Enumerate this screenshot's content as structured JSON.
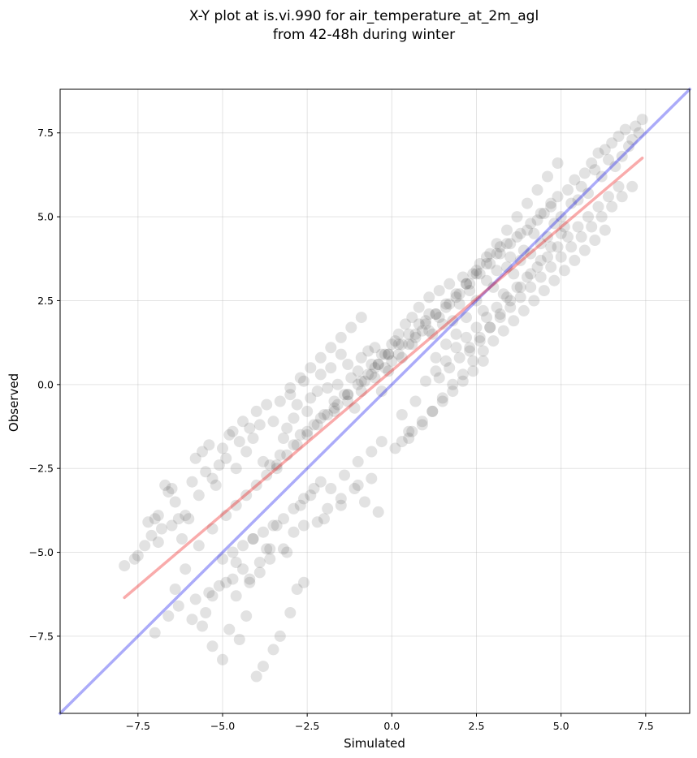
{
  "chart_data": {
    "type": "scatter",
    "title_line1": "X-Y plot at is.vi.990 for air_temperature_at_2m_agl",
    "title_line2": "from 42-48h during winter",
    "xlabel": "Simulated",
    "ylabel": "Observed",
    "xlim": [
      -9.8,
      8.8
    ],
    "ylim": [
      -9.8,
      8.8
    ],
    "x_ticks": [
      -7.5,
      -5.0,
      -2.5,
      0.0,
      2.5,
      5.0,
      7.5
    ],
    "x_tick_labels": [
      "−7.5",
      "−5.0",
      "−2.5",
      "0.0",
      "2.5",
      "5.0",
      "7.5"
    ],
    "y_ticks": [
      -7.5,
      -5.0,
      -2.5,
      0.0,
      2.5,
      5.0,
      7.5
    ],
    "y_tick_labels": [
      "−7.5",
      "−5.0",
      "−2.5",
      "0.0",
      "2.5",
      "5.0",
      "7.5"
    ],
    "grid": true,
    "colors": {
      "points": "#333333",
      "identity_line": "#0000ee",
      "regression_line": "#ee0000"
    },
    "identity_line": {
      "x": [
        -9.8,
        8.8
      ],
      "y": [
        -9.8,
        8.8
      ]
    },
    "regression_line": {
      "x": [
        -7.9,
        7.4
      ],
      "y": [
        -6.35,
        6.75
      ]
    },
    "points": {
      "x": [
        -7.9,
        -7.6,
        -7.5,
        -7.3,
        -7.2,
        -7.1,
        -7.0,
        -6.9,
        -6.9,
        -6.8,
        -6.7,
        -6.6,
        -6.5,
        -6.5,
        -6.4,
        -6.3,
        -6.2,
        -6.1,
        -6.0,
        -5.9,
        -5.8,
        -5.7,
        -5.6,
        -5.5,
        -5.4,
        -5.3,
        -5.2,
        -5.1,
        -5.0,
        -4.9,
        -4.8,
        -4.7,
        -4.6,
        -4.5,
        -4.4,
        -4.3,
        -4.2,
        -4.1,
        -4.0,
        -3.9,
        -3.8,
        -3.7,
        -3.6,
        -3.5,
        -3.4,
        -3.3,
        -3.2,
        -3.1,
        -3.0,
        -2.9,
        -2.8,
        -2.7,
        -2.6,
        -2.5,
        -2.4,
        -2.3,
        -2.2,
        -2.1,
        -2.0,
        -1.9,
        -1.8,
        -1.7,
        -1.6,
        -1.5,
        -1.4,
        -1.3,
        -1.2,
        -1.1,
        -1.0,
        -0.9,
        -0.8,
        -0.7,
        -0.6,
        -0.5,
        -0.4,
        -0.3,
        -0.2,
        -0.1,
        0.0,
        0.1,
        0.2,
        0.3,
        0.4,
        0.5,
        0.6,
        0.7,
        0.8,
        0.9,
        1.0,
        1.1,
        1.2,
        1.3,
        1.4,
        1.5,
        1.6,
        1.7,
        1.8,
        1.9,
        2.0,
        2.1,
        2.2,
        2.3,
        2.4,
        2.5,
        2.6,
        2.7,
        2.8,
        2.9,
        3.0,
        3.1,
        3.2,
        3.3,
        3.4,
        3.5,
        3.6,
        3.7,
        3.8,
        3.9,
        4.0,
        4.1,
        4.2,
        4.3,
        4.4,
        4.5,
        4.6,
        4.7,
        4.8,
        4.9,
        5.0,
        5.1,
        5.2,
        5.3,
        5.4,
        5.5,
        5.6,
        5.7,
        5.8,
        5.9,
        6.0,
        6.1,
        6.2,
        6.3,
        6.4,
        6.5,
        6.6,
        6.7,
        6.8,
        6.9,
        7.0,
        7.1,
        7.2,
        7.3,
        7.4,
        -7.0,
        -6.6,
        -6.3,
        -5.8,
        -5.4,
        -5.1,
        -4.7,
        -4.4,
        -4.2,
        -3.9,
        -3.6,
        -3.2,
        -2.9,
        -2.6,
        -2.2,
        -1.9,
        -1.5,
        -1.1,
        -0.8,
        -0.4,
        -5.9,
        -5.6,
        -5.3,
        -5.0,
        -4.8,
        -4.5,
        -4.3,
        -4.0,
        -3.8,
        -3.5,
        -3.3,
        -3.0,
        -2.8,
        -2.6,
        -2.0,
        -1.5,
        -1.0,
        -0.6,
        0.1,
        0.5,
        -6.4,
        -6.1,
        -5.7,
        -5.3,
        -4.9,
        -4.6,
        -4.1,
        -3.7,
        -3.4,
        -3.1,
        -2.7,
        -2.4,
        -2.1,
        -1.8,
        -1.4,
        -1.0,
        -0.6,
        -0.3,
        0.3,
        0.7,
        1.0,
        1.3,
        1.6,
        1.9,
        2.2,
        2.5,
        2.8,
        3.1,
        3.4,
        3.7,
        4.0,
        4.3,
        4.6,
        4.9,
        5.2,
        5.5,
        5.8,
        6.1,
        6.4,
        6.7,
        0.5,
        0.9,
        1.2,
        1.5,
        1.8,
        2.1,
        2.4,
        2.7,
        3.0,
        3.3,
        3.6,
        3.9,
        4.2,
        4.5,
        4.8,
        5.1,
        5.4,
        5.7,
        6.0,
        6.3,
        -1.7,
        -1.3,
        -0.9,
        -0.5,
        -0.2,
        0.2,
        0.6,
        1.1,
        1.4,
        1.7,
        2.0,
        2.3,
        2.6,
        2.9,
        3.2,
        3.5,
        3.8,
        4.1,
        4.4,
        4.7,
        -3.3,
        -2.9,
        -2.5,
        -2.1,
        -1.7,
        -1.3,
        -0.9,
        -0.5,
        -0.1,
        0.3,
        0.7,
        1.0,
        1.3,
        1.6,
        1.9,
        2.2,
        2.5,
        2.8,
        3.1,
        3.4,
        -4.6,
        -4.3,
        -4.0,
        -3.7,
        -3.4,
        -3.1,
        -2.8,
        -2.5,
        -2.2,
        -1.9,
        -1.6,
        -1.3,
        -1.0,
        -0.7,
        -0.4,
        -0.1,
        0.2,
        0.5,
        0.8,
        1.1,
        1.4,
        1.7,
        2.0,
        2.3,
        2.6,
        2.9,
        3.2,
        3.5,
        3.8,
        4.1,
        4.4,
        4.7,
        5.0,
        5.3,
        5.6,
        5.9,
        6.2,
        6.5,
        6.8,
        7.1,
        -5.0,
        -4.7,
        -4.4,
        -4.1,
        -3.8,
        -3.5,
        -3.2,
        -2.9,
        -2.6,
        -2.3,
        -5.3,
        -5.5,
        -4.9,
        -4.6,
        -4.2,
        -3.9,
        -3.6,
        1.3,
        1.6,
        1.9,
        2.2,
        2.5,
        2.8,
        3.1,
        3.4,
        3.7,
        4.0,
        4.3,
        4.6,
        4.9,
        2.3,
        2.6,
        2.9,
        3.2,
        3.5,
        3.8,
        4.1,
        4.4,
        4.7,
        5.0,
        -3.0,
        -2.7,
        -2.4,
        -2.1,
        -1.8,
        -1.5,
        -1.2,
        -0.9,
        -0.6,
        -0.3,
        0.0,
        0.3,
        0.6,
        0.9,
        1.2,
        1.5,
        1.8,
        2.1,
        2.4,
        2.7
      ],
      "y": [
        -5.4,
        -5.2,
        -5.1,
        -4.8,
        -4.1,
        -4.5,
        -4.0,
        -4.7,
        -3.9,
        -4.3,
        -3.0,
        -3.2,
        -3.1,
        -4.2,
        -3.5,
        -4.0,
        -4.6,
        -3.9,
        -4.0,
        -2.9,
        -2.2,
        -3.3,
        -2.0,
        -2.6,
        -1.8,
        -2.8,
        -3.0,
        -2.4,
        -1.9,
        -2.2,
        -1.5,
        -1.4,
        -2.5,
        -1.7,
        -1.1,
        -2.0,
        -1.3,
        -1.6,
        -0.8,
        -1.2,
        -2.3,
        -0.6,
        -2.4,
        -1.1,
        -2.5,
        -0.5,
        -1.6,
        -1.3,
        -0.3,
        -1.0,
        -0.6,
        -1.5,
        0.1,
        -0.8,
        -0.4,
        -1.2,
        -0.2,
        0.3,
        -0.9,
        -0.1,
        0.5,
        -0.5,
        0.0,
        0.9,
        -0.3,
        0.6,
        0.2,
        -0.7,
        0.4,
        0.8,
        0.1,
        1.0,
        0.3,
        1.1,
        0.6,
        -0.2,
        0.9,
        0.4,
        0.7,
        1.3,
        1.5,
        0.8,
        1.8,
        1.2,
        2.0,
        1.4,
        2.3,
        1.6,
        1.9,
        2.6,
        1.5,
        2.1,
        2.8,
        1.8,
        2.3,
        3.0,
        1.9,
        2.6,
        2.4,
        3.2,
        2.0,
        2.8,
        3.3,
        2.5,
        3.6,
        2.2,
        3.1,
        3.9,
        2.9,
        3.4,
        4.1,
        2.7,
        3.5,
        3.8,
        3.3,
        4.4,
        3.7,
        4.0,
        4.6,
        3.9,
        4.5,
        4.9,
        4.2,
        5.1,
        4.4,
        5.3,
        4.8,
        5.6,
        5.0,
        4.7,
        5.8,
        5.4,
        6.1,
        5.5,
        5.9,
        6.3,
        5.7,
        6.6,
        6.4,
        6.9,
        6.2,
        7.0,
        6.7,
        7.2,
        6.5,
        7.4,
        6.8,
        7.6,
        7.1,
        7.3,
        7.7,
        7.5,
        7.9,
        -7.4,
        -6.9,
        -6.6,
        -6.4,
        -6.2,
        -6.0,
        -5.8,
        -5.5,
        -5.9,
        -5.6,
        -5.2,
        -4.9,
        -4.4,
        -4.2,
        -4.1,
        -3.7,
        -3.4,
        -3.1,
        -3.5,
        -3.8,
        -7.0,
        -7.2,
        -7.8,
        -8.2,
        -7.3,
        -7.6,
        -6.9,
        -8.7,
        -8.4,
        -7.9,
        -7.5,
        -6.8,
        -6.1,
        -5.9,
        -4.0,
        -3.6,
        -3.0,
        -2.8,
        -1.9,
        -1.4,
        -6.1,
        -5.5,
        -4.8,
        -4.3,
        -3.9,
        -5.3,
        -4.6,
        -4.9,
        -4.2,
        -5.0,
        -3.6,
        -3.3,
        -2.9,
        -3.1,
        -2.7,
        -2.3,
        -2.0,
        -1.7,
        -0.9,
        -0.5,
        0.1,
        0.4,
        0.7,
        1.1,
        1.4,
        1.7,
        2.0,
        2.3,
        2.6,
        2.9,
        3.2,
        3.5,
        3.8,
        4.1,
        4.4,
        4.7,
        5.0,
        5.3,
        5.6,
        5.9,
        -1.6,
        -1.2,
        -0.8,
        -0.4,
        0.0,
        0.3,
        0.7,
        1.0,
        1.3,
        1.6,
        1.9,
        2.2,
        2.5,
        2.8,
        3.1,
        3.4,
        3.7,
        4.0,
        4.3,
        4.6,
        -0.8,
        -0.5,
        -0.2,
        0.2,
        0.5,
        0.9,
        1.2,
        1.6,
        2.0,
        2.4,
        2.7,
        3.0,
        3.3,
        3.6,
        3.9,
        4.2,
        4.5,
        4.8,
        5.1,
        5.4,
        -2.1,
        -1.8,
        -1.4,
        -1.0,
        -0.7,
        -0.3,
        0.1,
        0.5,
        0.9,
        1.2,
        1.5,
        1.8,
        2.1,
        2.4,
        2.7,
        3.0,
        3.3,
        3.6,
        3.9,
        4.2,
        -3.6,
        -3.3,
        -3.0,
        -2.7,
        -2.4,
        -2.1,
        -1.8,
        -1.5,
        -1.2,
        -0.9,
        -0.6,
        -0.3,
        0.0,
        0.3,
        0.6,
        0.9,
        1.2,
        1.5,
        1.8,
        2.1,
        0.2,
        0.5,
        0.8,
        1.1,
        1.4,
        1.7,
        2.0,
        2.3,
        2.6,
        2.9,
        3.2,
        3.5,
        3.8,
        4.1,
        4.4,
        4.7,
        5.0,
        5.3,
        5.6,
        5.9,
        -5.2,
        -5.0,
        -4.8,
        -4.6,
        -4.4,
        -4.2,
        -4.0,
        -3.7,
        -3.4,
        -3.1,
        -6.3,
        -6.8,
        -5.9,
        -6.3,
        -5.8,
        -5.3,
        -4.9,
        0.8,
        1.2,
        1.5,
        3.0,
        3.4,
        3.8,
        4.2,
        4.6,
        5.0,
        5.4,
        5.8,
        6.2,
        6.6,
        1.0,
        1.3,
        1.7,
        2.1,
        2.5,
        2.9,
        3.3,
        3.7,
        4.1,
        4.5,
        -0.1,
        0.2,
        0.5,
        0.8,
        1.1,
        1.4,
        1.7,
        2.0,
        0.6,
        0.9,
        1.2,
        -1.7,
        -1.4,
        -1.1,
        -0.8,
        -0.5,
        -0.2,
        0.1,
        0.4,
        0.7
      ]
    }
  }
}
